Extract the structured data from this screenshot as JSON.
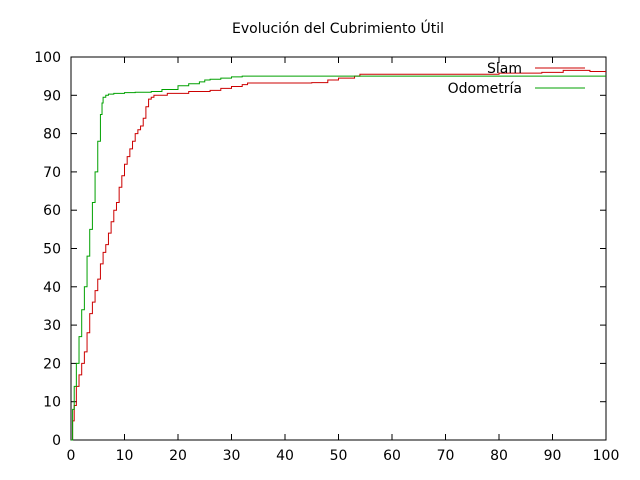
{
  "chart_data": {
    "type": "line",
    "title": "Evolución del Cubrimiento Útil",
    "xlabel": "",
    "ylabel": "",
    "xlim": [
      0,
      100
    ],
    "ylim": [
      0,
      100
    ],
    "xticks": [
      0,
      10,
      20,
      30,
      40,
      50,
      60,
      70,
      80,
      90,
      100
    ],
    "yticks": [
      0,
      10,
      20,
      30,
      40,
      50,
      60,
      70,
      80,
      90,
      100
    ],
    "grid": false,
    "legend_position": "top-right",
    "series": [
      {
        "name": "Slam",
        "color": "#cc0000",
        "step": true,
        "x": [
          0,
          0.3,
          0.6,
          1.0,
          1.5,
          2.0,
          2.5,
          3.0,
          3.5,
          4.0,
          4.5,
          5.0,
          5.5,
          6.0,
          6.5,
          7.0,
          7.5,
          8.0,
          8.5,
          9.0,
          9.5,
          10.0,
          10.5,
          11.0,
          11.5,
          12.0,
          12.5,
          13.0,
          13.5,
          14.0,
          14.5,
          15.0,
          15.5,
          16.0,
          18.0,
          20.0,
          22.0,
          26.0,
          28.0,
          30.0,
          32.0,
          33.0,
          35.0,
          40.0,
          45.0,
          47.0,
          48.0,
          50.0,
          52.0,
          53.0,
          54.0,
          60.0,
          70.0,
          80.0,
          88.0,
          92.0,
          96.0,
          97.0,
          100.0
        ],
        "y": [
          0,
          5,
          9,
          14,
          17,
          20,
          23,
          28,
          33,
          36,
          39,
          42,
          46,
          49,
          51,
          54,
          57,
          60,
          62,
          66,
          69,
          72,
          74,
          76,
          78,
          80,
          81,
          82,
          84,
          87,
          89,
          89.5,
          90,
          90,
          90.5,
          90.5,
          91,
          91.3,
          91.8,
          92.3,
          92.8,
          93.2,
          93.2,
          93.2,
          93.3,
          93.3,
          94,
          94.5,
          94.5,
          95,
          95.5,
          95.5,
          95.5,
          95.8,
          96,
          96.5,
          96.5,
          96.2,
          96.2
        ]
      },
      {
        "name": "Odometría",
        "color": "#00a000",
        "step": true,
        "x": [
          0,
          0.3,
          0.6,
          1.0,
          1.5,
          2.0,
          2.5,
          3.0,
          3.5,
          4.0,
          4.5,
          5.0,
          5.5,
          5.8,
          6.0,
          6.5,
          7.0,
          8.0,
          10.0,
          12.0,
          15.0,
          17.0,
          20.0,
          22.0,
          24.0,
          25.0,
          26.0,
          28.0,
          30.0,
          32.0,
          100.0
        ],
        "y": [
          0,
          8,
          14,
          20,
          27,
          34,
          40,
          48,
          55,
          62,
          70,
          78,
          85,
          88,
          89.5,
          90,
          90.3,
          90.5,
          90.7,
          90.8,
          91,
          91.5,
          92.5,
          93,
          93.5,
          94,
          94.2,
          94.5,
          94.8,
          95,
          95
        ]
      }
    ]
  }
}
